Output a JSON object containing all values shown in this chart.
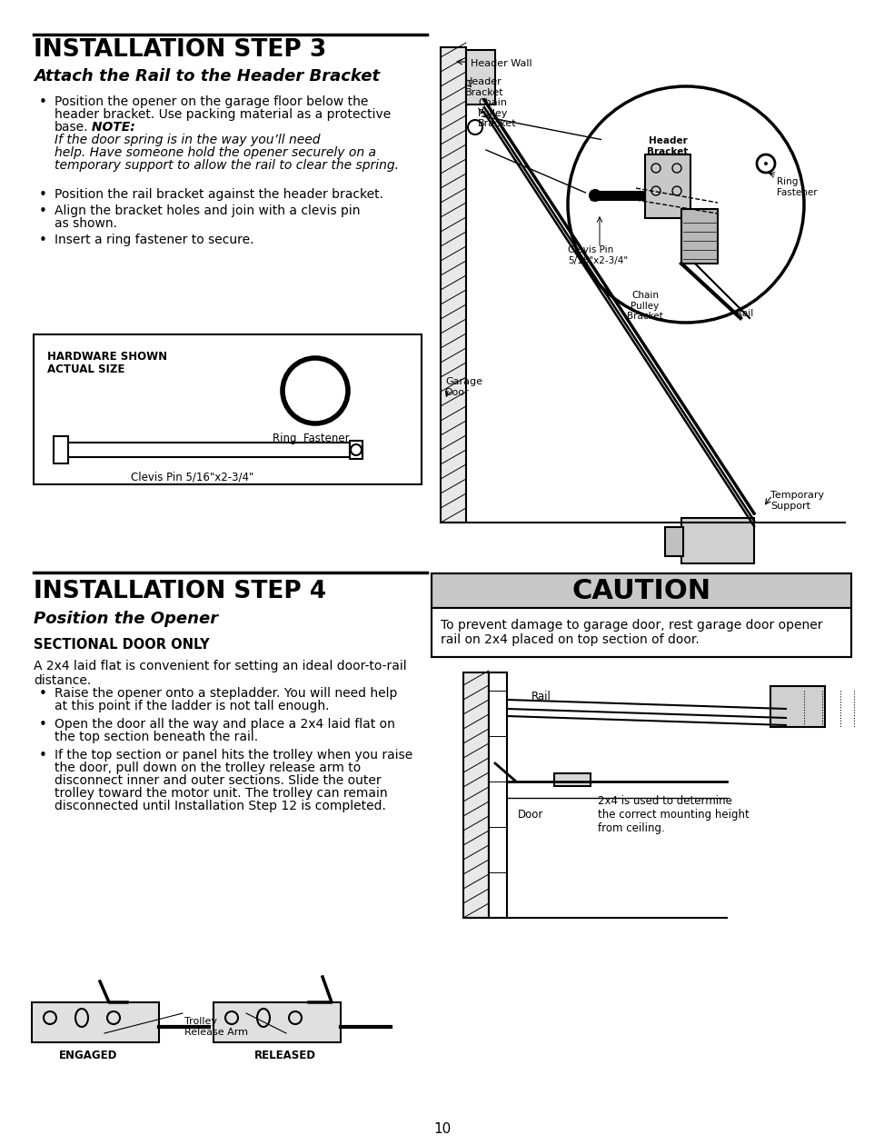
{
  "page_bg": "#ffffff",
  "title_step3": "INSTALLATION STEP 3",
  "subtitle_step3": "Attach the Rail to the Header Bracket",
  "bullet1_pre": "Position the opener on the garage floor below the\nheader bracket. Use packing material as a protective\nbase.",
  "bullet1_note": " NOTE:",
  "bullet1_post": " If the door spring is in the way you’ll need\nhelp. Have someone hold the opener securely on a\ntemporary support to allow the rail to clear the spring.",
  "bullet2": "Position the rail bracket against the header bracket.",
  "bullet3": "Align the bracket holes and join with a clevis pin\nas shown.",
  "bullet4": "Insert a ring fastener to secure.",
  "hardware_box_label1": "HARDWARE SHOWN",
  "hardware_box_label2": "ACTUAL SIZE",
  "ring_fastener_label": "Ring  Fastener",
  "clevis_pin_label": "Clevis Pin 5/16\"x2-3/4\"",
  "title_step4": "INSTALLATION STEP 4",
  "subtitle_step4": "Position the Opener",
  "section_label": "SECTIONAL DOOR ONLY",
  "intro_step4": "A 2x4 laid flat is convenient for setting an ideal door-to-rail\ndistance.",
  "bullet4_1": "Raise the opener onto a stepladder. You will need help\nat this point if the ladder is not tall enough.",
  "bullet4_2": "Open the door all the way and place a 2x4 laid flat on\nthe top section beneath the rail.",
  "bullet4_3": "If the top section or panel hits the trolley when you raise\nthe door, pull down on the trolley release arm to\ndisconnect inner and outer sections. Slide the outer\ntrolley toward the motor unit. The trolley can remain\ndisconnected until Installation Step 12 is completed.",
  "caution_title": "CAUTION",
  "caution_text": "To prevent damage to garage door, rest garage door opener\nrail on 2x4 placed on top section of door.",
  "engaged_label": "ENGAGED",
  "released_label": "RELEASED",
  "trolley_label": "Trolley\nRelease Arm",
  "page_number": "10",
  "lbl_header_wall": "Header Wall",
  "lbl_header_bracket": "Header\nBracket",
  "lbl_chain_pulley": "Chain\nPulley\nBracket",
  "lbl_header_bracket_inset": "Header\nBracket",
  "lbl_ring_fastener_inset": "Ring\nFastener",
  "lbl_clevis_pin_inset": "Clevis Pin\n5/16\"x2-3/4\"",
  "lbl_chain_pulley_inset": "Chain\nPulley\nBracket",
  "lbl_rail_inset": "Rail",
  "lbl_garage_door": "Garage\nDoor",
  "lbl_temp_support": "Temporary\nSupport",
  "lbl_rail_s4": "Rail",
  "lbl_door_s4": "Door",
  "lbl_2x4": "2x4 is used to determine\nthe correct mounting height\nfrom ceiling."
}
